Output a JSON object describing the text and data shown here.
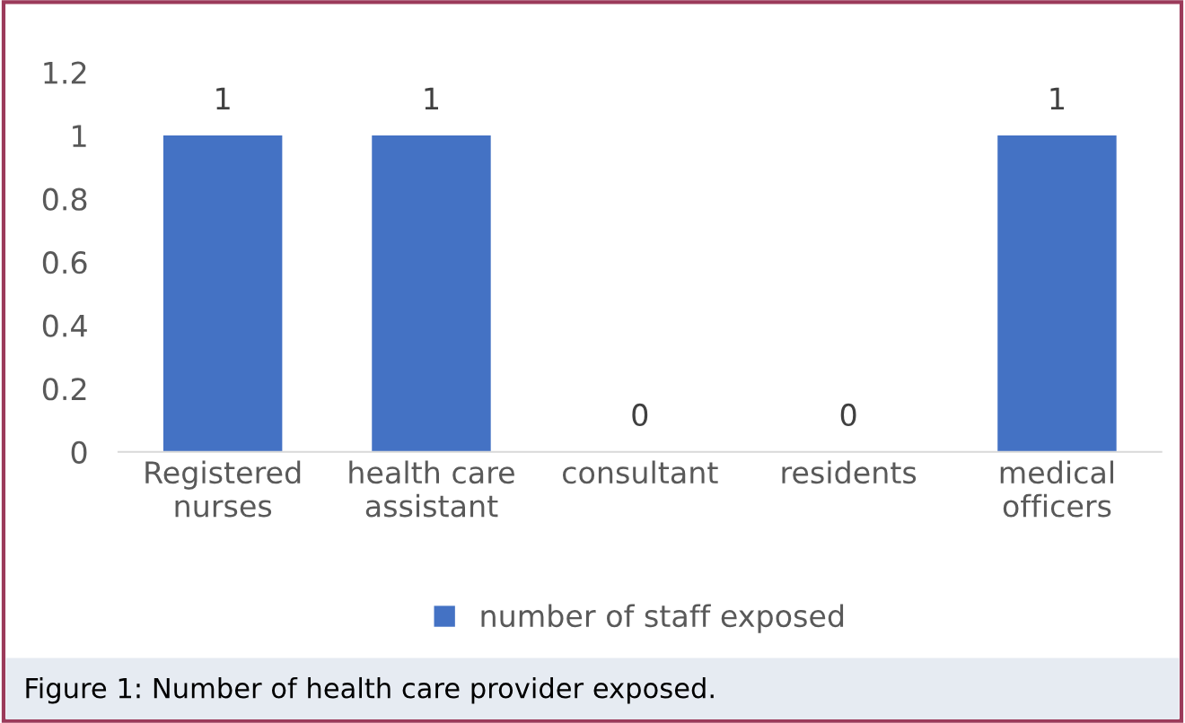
{
  "chart_data": {
    "type": "bar",
    "categories": [
      "Registered\nnurses",
      "health care\nassistant",
      "consultant",
      "residents",
      "medical\nofficers"
    ],
    "series": [
      {
        "name": "number of staff exposed",
        "color": "#4472c4",
        "values": [
          1,
          1,
          0,
          0,
          1
        ]
      }
    ],
    "ylim": [
      0,
      1.2
    ],
    "yticks": [
      0,
      0.2,
      0.4,
      0.6,
      0.8,
      1,
      1.2
    ],
    "data_labels": true,
    "legend": "bottom",
    "grid": false,
    "annotations": [
      "Figure 1: Number of health care provider exposed."
    ]
  }
}
